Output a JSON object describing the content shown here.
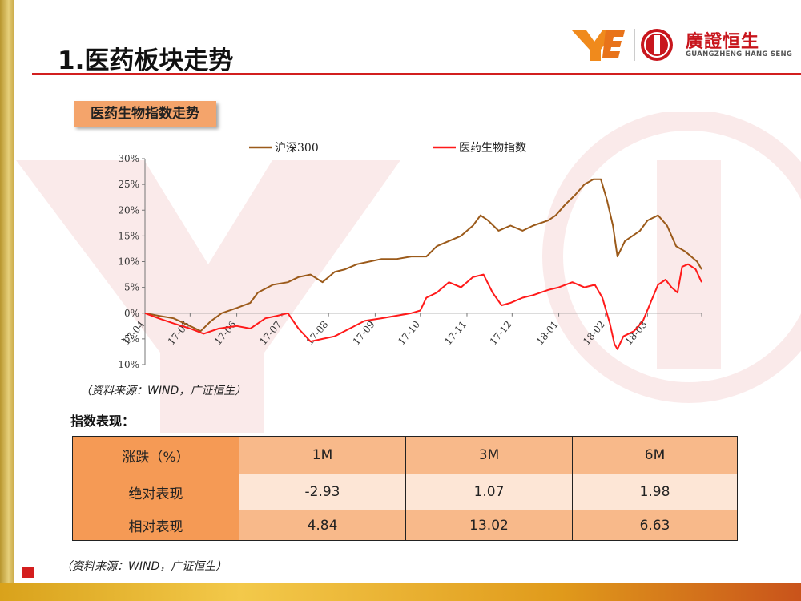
{
  "header": {
    "title": "1.医药板块走势",
    "logo_cn": "廣證恒生",
    "logo_en": "GUANGZHENG HANG SENG"
  },
  "section_label": "医药生物指数走势",
  "source_note_1": "（资料来源：WIND，广证恒生）",
  "index_perf_label": "指数表现：",
  "table": {
    "header": [
      "涨跌（%）",
      "1M",
      "3M",
      "6M"
    ],
    "rows": [
      [
        "绝对表现",
        "-2.93",
        "1.07",
        "1.98"
      ],
      [
        "相对表现",
        "4.84",
        "13.02",
        "6.63"
      ]
    ]
  },
  "source_note_2": "（资料来源：WIND，广证恒生）",
  "colors": {
    "accent_red": "#d21f1f",
    "series_hs300": "#9b5a1a",
    "series_pharma": "#ff1a1a",
    "section_label_bg": "#f4a46b"
  },
  "chart_data": {
    "type": "line",
    "x_ticks": [
      "17-04",
      "17-05",
      "17-06",
      "17-07",
      "17-08",
      "17-09",
      "17-10",
      "17-11",
      "17-12",
      "18-01",
      "18-02",
      "18-03"
    ],
    "y_ticks": [
      "30%",
      "25%",
      "20%",
      "15%",
      "10%",
      "5%",
      "0%",
      "-5%",
      "-10%"
    ],
    "ylim": [
      -10,
      30
    ],
    "y_unit": "%",
    "legend_position": "top",
    "series": [
      {
        "name": "沪深300",
        "color": "#9b5a1a",
        "points": [
          [
            "17-04-01",
            0
          ],
          [
            "17-04-10",
            -0.5
          ],
          [
            "17-04-20",
            -1
          ],
          [
            "17-05-01",
            -2.5
          ],
          [
            "17-05-08",
            -3.5
          ],
          [
            "17-05-15",
            -1.5
          ],
          [
            "17-05-22",
            0
          ],
          [
            "17-06-01",
            1
          ],
          [
            "17-06-10",
            2
          ],
          [
            "17-06-15",
            4
          ],
          [
            "17-06-25",
            5.5
          ],
          [
            "17-07-05",
            6
          ],
          [
            "17-07-12",
            7
          ],
          [
            "17-07-20",
            7.5
          ],
          [
            "17-07-28",
            6
          ],
          [
            "17-08-05",
            8
          ],
          [
            "17-08-12",
            8.5
          ],
          [
            "17-08-20",
            9.5
          ],
          [
            "17-08-28",
            10
          ],
          [
            "17-09-05",
            10.5
          ],
          [
            "17-09-15",
            10.5
          ],
          [
            "17-09-25",
            11
          ],
          [
            "17-10-05",
            11
          ],
          [
            "17-10-12",
            13
          ],
          [
            "17-10-20",
            14
          ],
          [
            "17-10-28",
            15
          ],
          [
            "17-11-05",
            17
          ],
          [
            "17-11-10",
            19
          ],
          [
            "17-11-15",
            18
          ],
          [
            "17-11-22",
            16
          ],
          [
            "17-11-30",
            17
          ],
          [
            "17-12-08",
            16
          ],
          [
            "17-12-15",
            17
          ],
          [
            "17-12-25",
            18
          ],
          [
            "17-12-30",
            19
          ],
          [
            "18-01-05",
            21
          ],
          [
            "18-01-12",
            23
          ],
          [
            "18-01-18",
            25
          ],
          [
            "18-01-24",
            26
          ],
          [
            "18-01-29",
            26
          ],
          [
            "18-02-02",
            22
          ],
          [
            "18-02-06",
            17
          ],
          [
            "18-02-09",
            11
          ],
          [
            "18-02-14",
            14
          ],
          [
            "18-02-24",
            16
          ],
          [
            "18-03-01",
            18
          ],
          [
            "18-03-08",
            19
          ],
          [
            "18-03-14",
            17
          ],
          [
            "18-03-20",
            13
          ],
          [
            "18-03-26",
            12
          ],
          [
            "18-03-30",
            11
          ],
          [
            "18-04-03",
            10
          ],
          [
            "18-04-06",
            8.5
          ]
        ]
      },
      {
        "name": "医药生物指数",
        "color": "#ff1a1a",
        "points": [
          [
            "17-04-01",
            0
          ],
          [
            "17-04-10",
            -1
          ],
          [
            "17-04-20",
            -2
          ],
          [
            "17-05-01",
            -3
          ],
          [
            "17-05-10",
            -4
          ],
          [
            "17-05-20",
            -3
          ],
          [
            "17-06-01",
            -2.5
          ],
          [
            "17-06-10",
            -3
          ],
          [
            "17-06-20",
            -1
          ],
          [
            "17-06-28",
            -0.5
          ],
          [
            "17-07-05",
            0
          ],
          [
            "17-07-12",
            -3
          ],
          [
            "17-07-20",
            -5.5
          ],
          [
            "17-07-28",
            -5
          ],
          [
            "17-08-05",
            -4.5
          ],
          [
            "17-08-15",
            -3
          ],
          [
            "17-08-25",
            -1.5
          ],
          [
            "17-09-05",
            -1
          ],
          [
            "17-09-15",
            -0.5
          ],
          [
            "17-09-25",
            0
          ],
          [
            "17-10-01",
            0.5
          ],
          [
            "17-10-05",
            3
          ],
          [
            "17-10-12",
            4
          ],
          [
            "17-10-20",
            6
          ],
          [
            "17-10-28",
            5
          ],
          [
            "17-11-05",
            7
          ],
          [
            "17-11-12",
            7.5
          ],
          [
            "17-11-18",
            4
          ],
          [
            "17-11-24",
            1.5
          ],
          [
            "17-11-30",
            2
          ],
          [
            "17-12-08",
            3
          ],
          [
            "17-12-15",
            3.5
          ],
          [
            "17-12-25",
            4.5
          ],
          [
            "18-01-01",
            5
          ],
          [
            "18-01-10",
            6
          ],
          [
            "18-01-18",
            5
          ],
          [
            "18-01-25",
            5.5
          ],
          [
            "18-01-30",
            3
          ],
          [
            "18-02-04",
            -2
          ],
          [
            "18-02-07",
            -6
          ],
          [
            "18-02-09",
            -7
          ],
          [
            "18-02-13",
            -4.5
          ],
          [
            "18-02-20",
            -3.5
          ],
          [
            "18-02-26",
            -1.5
          ],
          [
            "18-03-03",
            2
          ],
          [
            "18-03-08",
            5.5
          ],
          [
            "18-03-13",
            6.5
          ],
          [
            "18-03-17",
            5
          ],
          [
            "18-03-21",
            4
          ],
          [
            "18-03-24",
            9
          ],
          [
            "18-03-28",
            9.5
          ],
          [
            "18-04-02",
            8.5
          ],
          [
            "18-04-06",
            6
          ]
        ]
      }
    ]
  }
}
